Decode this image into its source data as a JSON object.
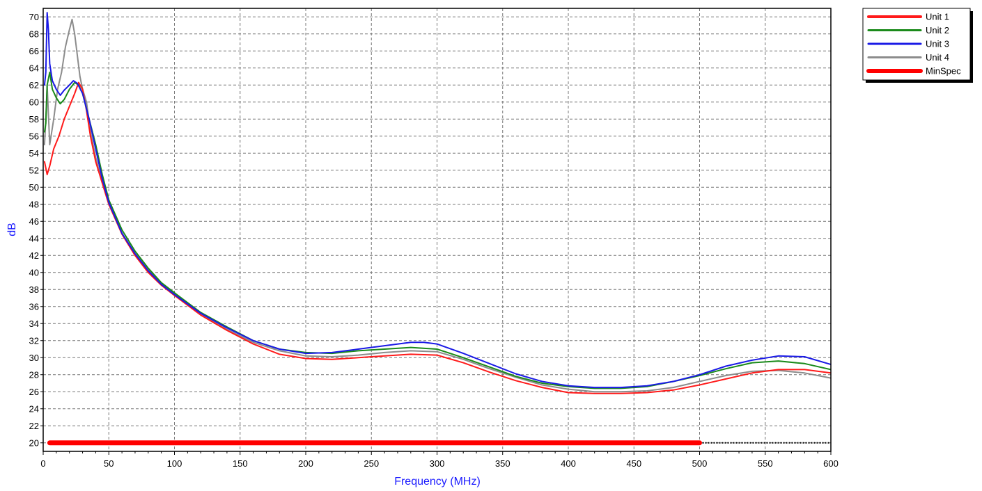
{
  "chart_data": {
    "type": "line",
    "title": "",
    "xlabel": "Frequency (MHz)",
    "ylabel": "dB",
    "xlim": [
      0,
      600
    ],
    "ylim": [
      19,
      71
    ],
    "x_ticks": [
      0,
      50,
      100,
      150,
      200,
      250,
      300,
      350,
      400,
      450,
      500,
      550,
      600
    ],
    "y_ticks": [
      20,
      22,
      24,
      26,
      28,
      30,
      32,
      34,
      36,
      38,
      40,
      42,
      44,
      46,
      48,
      50,
      52,
      54,
      56,
      58,
      60,
      62,
      64,
      66,
      68,
      70
    ],
    "grid": true,
    "legend_position": "outside-top-right",
    "series": [
      {
        "name": "Unit 1",
        "color": "#ff1a1a",
        "x": [
          1,
          3,
          5,
          8,
          12,
          16,
          20,
          24,
          27,
          30,
          33,
          36,
          40,
          45,
          50,
          60,
          70,
          80,
          90,
          100,
          120,
          140,
          160,
          180,
          200,
          220,
          240,
          260,
          280,
          300,
          320,
          340,
          360,
          380,
          400,
          420,
          440,
          460,
          480,
          500,
          520,
          540,
          560,
          580,
          600
        ],
        "y": [
          53,
          51.5,
          52.5,
          54.5,
          56,
          58,
          59.5,
          61,
          62.3,
          61.5,
          59,
          56,
          53,
          50.5,
          48,
          44.5,
          42,
          40,
          38.5,
          37.3,
          35,
          33.2,
          31.6,
          30.4,
          29.9,
          29.8,
          30,
          30.2,
          30.4,
          30.3,
          29.4,
          28.3,
          27.3,
          26.5,
          25.9,
          25.8,
          25.8,
          25.9,
          26.2,
          26.8,
          27.5,
          28.2,
          28.6,
          28.6,
          28.2
        ]
      },
      {
        "name": "Unit 2",
        "color": "#1a8a1a",
        "x": [
          1,
          2,
          3,
          5,
          7,
          10,
          13,
          16,
          20,
          24,
          27,
          30,
          35,
          40,
          45,
          50,
          60,
          70,
          80,
          90,
          100,
          120,
          140,
          160,
          180,
          200,
          220,
          240,
          260,
          280,
          300,
          320,
          340,
          360,
          380,
          400,
          420,
          440,
          460,
          480,
          500,
          520,
          540,
          560,
          580,
          600
        ],
        "y": [
          56.5,
          57.5,
          62,
          63.5,
          61.5,
          60.5,
          59.8,
          60.3,
          61.5,
          62.3,
          62,
          61,
          58,
          55,
          51.5,
          48.5,
          45,
          42.5,
          40.5,
          38.8,
          37.6,
          35.3,
          33.6,
          32,
          31,
          30.6,
          30.5,
          30.8,
          31,
          31.2,
          31,
          30,
          28.9,
          27.8,
          27,
          26.6,
          26.4,
          26.4,
          26.6,
          27.2,
          27.9,
          28.7,
          29.4,
          29.6,
          29.3,
          28.6
        ]
      },
      {
        "name": "Unit 3",
        "color": "#1a1ae6",
        "x": [
          1,
          2,
          3,
          4,
          5,
          7,
          10,
          13,
          16,
          20,
          23,
          26,
          30,
          35,
          40,
          45,
          50,
          60,
          70,
          80,
          90,
          100,
          120,
          140,
          160,
          180,
          200,
          220,
          240,
          260,
          280,
          290,
          300,
          320,
          340,
          360,
          380,
          400,
          420,
          440,
          460,
          480,
          500,
          520,
          540,
          560,
          580,
          600
        ],
        "y": [
          62,
          63.5,
          70.5,
          68.5,
          64.5,
          62.5,
          61.5,
          60.8,
          61.4,
          62,
          62.5,
          62.2,
          61,
          58,
          54.5,
          51,
          48.2,
          44.6,
          42.2,
          40.2,
          38.6,
          37.4,
          35.2,
          33.5,
          32,
          31,
          30.5,
          30.6,
          31,
          31.4,
          31.8,
          31.8,
          31.6,
          30.5,
          29.3,
          28.1,
          27.2,
          26.7,
          26.5,
          26.5,
          26.7,
          27.2,
          28,
          29,
          29.7,
          30.2,
          30.1,
          29.2
        ]
      },
      {
        "name": "Unit 4",
        "color": "#8c8c8c",
        "x": [
          1,
          2,
          3,
          5,
          8,
          11,
          14,
          17,
          20,
          22,
          24,
          26,
          28,
          30,
          33,
          36,
          40,
          45,
          50,
          60,
          70,
          80,
          90,
          100,
          120,
          140,
          160,
          180,
          200,
          220,
          240,
          260,
          280,
          300,
          320,
          340,
          360,
          380,
          400,
          420,
          440,
          460,
          480,
          500,
          520,
          540,
          560,
          580,
          600
        ],
        "y": [
          55,
          58,
          62,
          55,
          58,
          61.5,
          63.5,
          66.5,
          68.5,
          69.7,
          68,
          65.5,
          63,
          61.5,
          60,
          56.5,
          53.5,
          50.5,
          48,
          44.6,
          42.2,
          40.3,
          38.8,
          37.6,
          35.2,
          33.3,
          31.8,
          30.8,
          30.2,
          30.1,
          30.3,
          30.6,
          30.8,
          30.7,
          29.8,
          28.7,
          27.7,
          26.8,
          26.3,
          26,
          26,
          26.1,
          26.5,
          27.2,
          27.9,
          28.4,
          28.5,
          28.2,
          27.6
        ]
      },
      {
        "name": "MinSpec",
        "color": "#ff0000",
        "x": [
          5,
          500
        ],
        "y": [
          20,
          20
        ]
      }
    ],
    "extra_line": {
      "color": "#000000",
      "dash": "dotted",
      "x": [
        500,
        600
      ],
      "y": [
        20,
        20
      ]
    }
  }
}
